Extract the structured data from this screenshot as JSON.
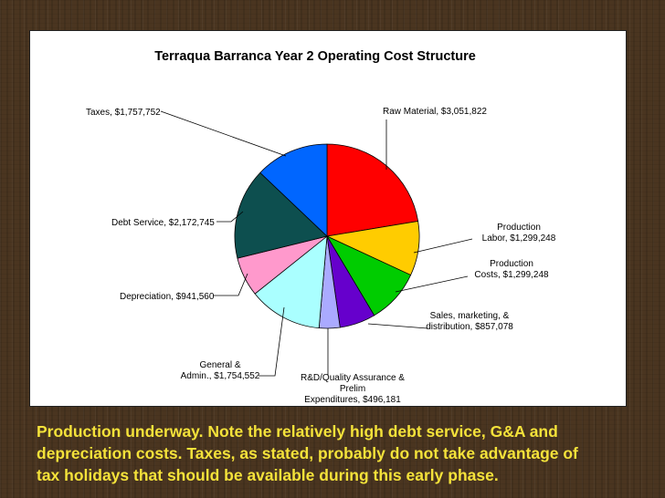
{
  "chart_data": {
    "type": "pie",
    "title": "Terraqua Barranca Year 2 Operating Cost Structure",
    "slices": [
      {
        "label": "Raw Material, $3,051,822",
        "value": 3051822,
        "color": "#ff0000"
      },
      {
        "label": "Production Labor, $1,299,248",
        "value": 1299248,
        "color": "#ffcc00"
      },
      {
        "label": "Production Costs, $1,299,248",
        "value": 1299248,
        "color": "#00cc00"
      },
      {
        "label": "Sales, marketing, & distribution, $857,078",
        "value": 857078,
        "color": "#6600cc"
      },
      {
        "label": "R&D/Quality Assurance & Prelim Expenditures, $496,181",
        "value": 496181,
        "color": "#aaaaff"
      },
      {
        "label": "General & Admin., $1,754,552",
        "value": 1754552,
        "color": "#aaffff"
      },
      {
        "label": "Depreciation, $941,560",
        "value": 941560,
        "color": "#ff99cc"
      },
      {
        "label": "Debt Service, $2,172,745",
        "value": 2172745,
        "color": "#0d4f4f"
      },
      {
        "label": "Taxes, $1,757,752",
        "value": 1757752,
        "color": "#0066ff"
      }
    ]
  },
  "labels": {
    "raw_material": [
      "Raw Material, $3,051,822"
    ],
    "production_labor": [
      "Production",
      "Labor, $1,299,248"
    ],
    "production_costs": [
      "Production",
      "Costs, $1,299,248"
    ],
    "sales": [
      "Sales, marketing, &",
      "distribution, $857,078"
    ],
    "rd": [
      "R&D/Quality Assurance &",
      "Prelim",
      "Expenditures, $496,181"
    ],
    "general": [
      "General &",
      "Admin., $1,754,552"
    ],
    "depreciation": [
      "Depreciation, $941,560"
    ],
    "debt": [
      "Debt Service, $2,172,745"
    ],
    "taxes": [
      "Taxes, $1,757,752"
    ]
  },
  "caption": {
    "line1": "Production underway.  Note the relatively high debt service, G&A and",
    "line2": "depreciation costs.   Taxes, as stated, probably do not take advantage of",
    "line3": "tax holidays that should be available during this early phase."
  }
}
